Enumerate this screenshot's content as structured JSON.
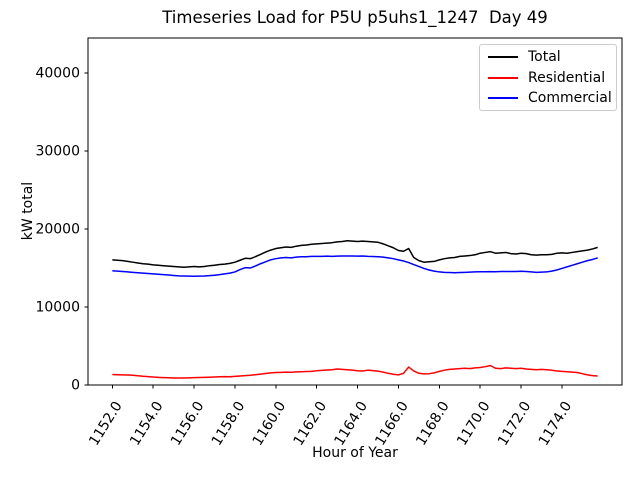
{
  "chart_data": {
    "type": "line",
    "title": "Timeseries Load for P5U p5uhs1_1247  Day 49",
    "xlabel": "Hour of Year",
    "ylabel": "kW total",
    "grid": false,
    "legend_position": "upper right",
    "xlim": [
      1150.81,
      1176.94
    ],
    "ylim": [
      0,
      44500
    ],
    "x_start": 1152.0,
    "x_step": 0.25,
    "n_points": 96,
    "xticks": {
      "values": [
        1152,
        1154,
        1156,
        1158,
        1160,
        1162,
        1164,
        1166,
        1168,
        1170,
        1172,
        1174
      ],
      "labels": [
        "1152.0",
        "1154.0",
        "1156.0",
        "1158.0",
        "1160.0",
        "1162.0",
        "1164.0",
        "1166.0",
        "1168.0",
        "1170.0",
        "1172.0",
        "1174.0"
      ]
    },
    "yticks": {
      "values": [
        0,
        10000,
        20000,
        30000,
        40000
      ],
      "labels": [
        "0",
        "10000",
        "20000",
        "30000",
        "40000"
      ]
    },
    "series": [
      {
        "name": "Total",
        "color": "#000000",
        "values": [
          16050,
          16000,
          15950,
          15850,
          15750,
          15650,
          15550,
          15500,
          15400,
          15350,
          15300,
          15250,
          15200,
          15150,
          15100,
          15150,
          15200,
          15150,
          15200,
          15300,
          15350,
          15450,
          15500,
          15600,
          15750,
          16000,
          16250,
          16200,
          16450,
          16750,
          17050,
          17300,
          17500,
          17600,
          17700,
          17650,
          17800,
          17900,
          17950,
          18050,
          18100,
          18150,
          18200,
          18250,
          18350,
          18400,
          18500,
          18450,
          18400,
          18450,
          18400,
          18350,
          18300,
          18100,
          17850,
          17600,
          17250,
          17150,
          17500,
          16350,
          15950,
          15750,
          15800,
          15850,
          16050,
          16200,
          16300,
          16350,
          16500,
          16550,
          16600,
          16700,
          16900,
          17000,
          17100,
          16900,
          16950,
          17000,
          16850,
          16800,
          16900,
          16850,
          16700,
          16650,
          16700,
          16700,
          16750,
          16900,
          16950,
          16900,
          17000,
          17100,
          17200,
          17300,
          17450,
          17650
        ]
      },
      {
        "name": "Residential",
        "color": "#ff0000",
        "values": [
          1350,
          1320,
          1300,
          1280,
          1250,
          1180,
          1120,
          1080,
          1020,
          980,
          950,
          930,
          900,
          890,
          900,
          920,
          950,
          960,
          980,
          1000,
          1020,
          1050,
          1080,
          1060,
          1100,
          1150,
          1200,
          1250,
          1320,
          1400,
          1480,
          1550,
          1600,
          1620,
          1650,
          1630,
          1680,
          1700,
          1730,
          1750,
          1820,
          1870,
          1920,
          1960,
          2050,
          2000,
          1950,
          1900,
          1830,
          1800,
          1900,
          1850,
          1780,
          1650,
          1500,
          1380,
          1300,
          1500,
          2300,
          1800,
          1500,
          1420,
          1450,
          1550,
          1750,
          1900,
          2000,
          2050,
          2100,
          2150,
          2100,
          2200,
          2250,
          2350,
          2500,
          2150,
          2100,
          2200,
          2150,
          2100,
          2150,
          2050,
          2000,
          1950,
          2000,
          1950,
          1900,
          1800,
          1750,
          1700,
          1650,
          1600,
          1450,
          1300,
          1200,
          1150
        ]
      },
      {
        "name": "Commercial",
        "color": "#0000ff",
        "values": [
          14650,
          14600,
          14550,
          14500,
          14450,
          14400,
          14350,
          14300,
          14250,
          14200,
          14150,
          14100,
          14050,
          14000,
          13980,
          13960,
          13950,
          13960,
          13980,
          14020,
          14080,
          14150,
          14250,
          14350,
          14500,
          14800,
          15050,
          15000,
          15250,
          15550,
          15800,
          16050,
          16200,
          16300,
          16350,
          16300,
          16400,
          16450,
          16450,
          16500,
          16500,
          16500,
          16520,
          16500,
          16520,
          16540,
          16550,
          16540,
          16530,
          16550,
          16500,
          16480,
          16450,
          16400,
          16300,
          16200,
          16050,
          15900,
          15700,
          15450,
          15200,
          14950,
          14750,
          14600,
          14500,
          14450,
          14420,
          14400,
          14420,
          14450,
          14480,
          14500,
          14520,
          14530,
          14540,
          14530,
          14550,
          14560,
          14550,
          14560,
          14580,
          14560,
          14500,
          14450,
          14470,
          14500,
          14600,
          14750,
          14950,
          15150,
          15350,
          15550,
          15750,
          15950,
          16100,
          16300
        ]
      }
    ]
  }
}
